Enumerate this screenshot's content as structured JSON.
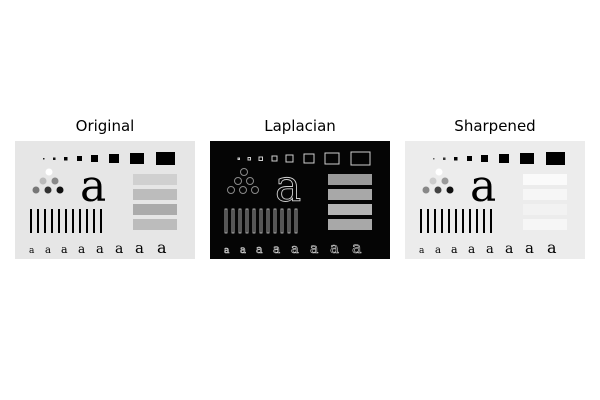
{
  "figure": {
    "panels": [
      {
        "title": "Original",
        "letter": "a"
      },
      {
        "title": "Laplacian",
        "letter": "a"
      },
      {
        "title": "Sharpened",
        "letter": "a"
      }
    ]
  },
  "colors": {
    "original_bg": "#e6e6e6",
    "laplacian_bg": "#050505",
    "sharpened_bg": "#ececec"
  }
}
